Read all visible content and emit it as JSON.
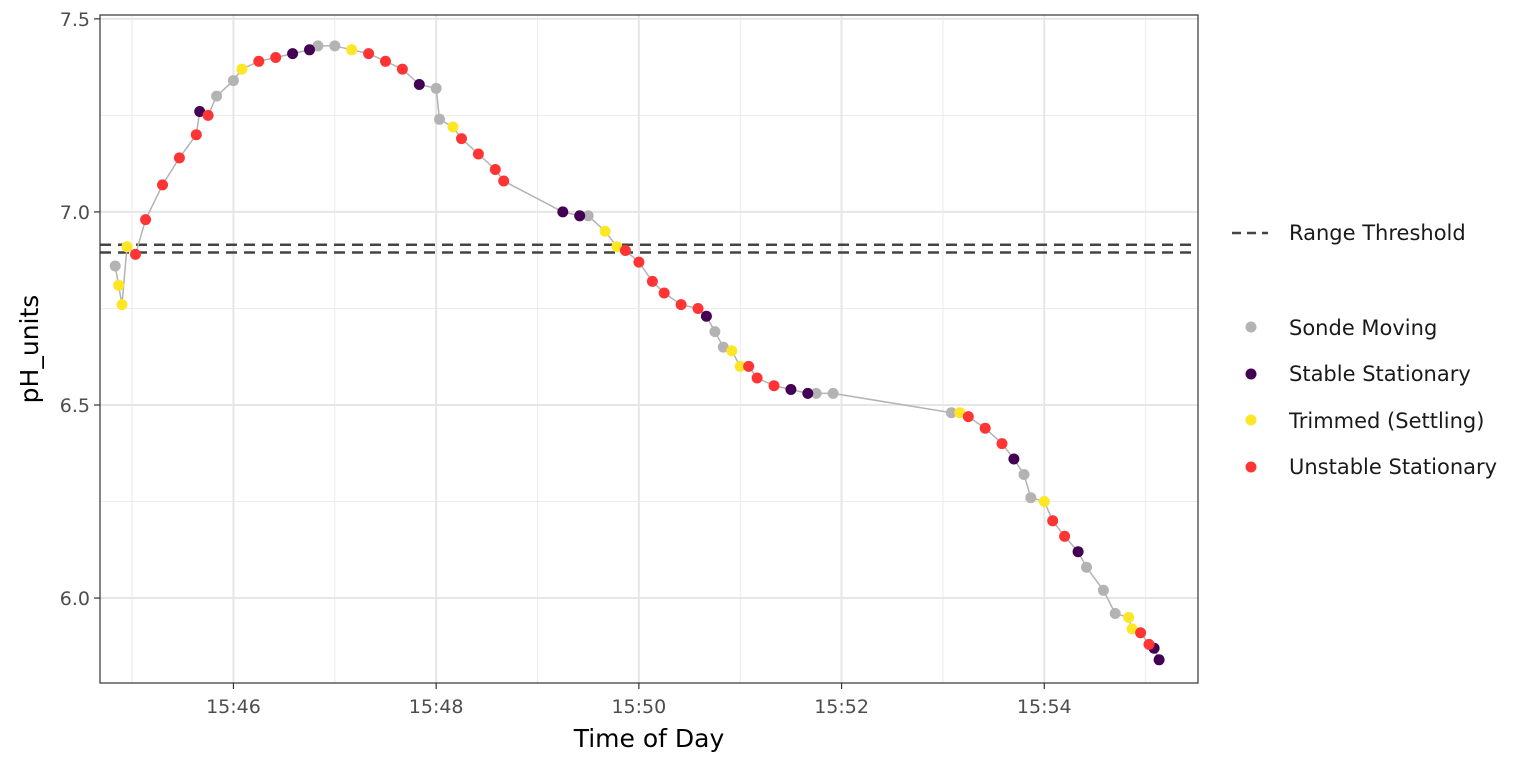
{
  "chart_data": {
    "type": "scatter",
    "title": "",
    "xlabel": "Time of Day",
    "ylabel": "pH_units",
    "xlim": [
      "15:44:41",
      "15:55:31"
    ],
    "ylim": [
      5.78,
      7.51
    ],
    "x_ticks": [
      "15:46",
      "15:48",
      "15:50",
      "15:52",
      "15:54"
    ],
    "y_ticks": [
      "6.0",
      "6.5",
      "7.0",
      "7.5"
    ],
    "grid": true,
    "legend_position": "right",
    "reference_lines": {
      "name": "Range Threshold",
      "style": "dashed",
      "color": "#444444",
      "values": [
        6.895,
        6.915
      ]
    },
    "series": [
      {
        "name": "Sonde Moving",
        "color": "#b3b3b3",
        "points": [
          [
            "15:44:50",
            6.86
          ],
          [
            "15:46:00",
            7.34
          ],
          [
            "15:45:50",
            7.3
          ],
          [
            "15:46:50",
            7.43
          ],
          [
            "15:47:00",
            7.43
          ],
          [
            "15:48:00",
            7.32
          ],
          [
            "15:48:02",
            7.24
          ],
          [
            "15:49:30",
            6.99
          ],
          [
            "15:50:45",
            6.69
          ],
          [
            "15:50:50",
            6.65
          ],
          [
            "15:51:45",
            6.53
          ],
          [
            "15:51:55",
            6.53
          ],
          [
            "15:53:05",
            6.48
          ],
          [
            "15:53:48",
            6.32
          ],
          [
            "15:53:52",
            6.26
          ],
          [
            "15:54:25",
            6.08
          ],
          [
            "15:54:35",
            6.02
          ],
          [
            "15:54:42",
            5.96
          ]
        ]
      },
      {
        "name": "Stable Stationary",
        "color": "#440154",
        "points": [
          [
            "15:45:40",
            7.26
          ],
          [
            "15:46:35",
            7.41
          ],
          [
            "15:46:45",
            7.42
          ],
          [
            "15:47:50",
            7.33
          ],
          [
            "15:49:15",
            7.0
          ],
          [
            "15:49:25",
            6.99
          ],
          [
            "15:50:40",
            6.73
          ],
          [
            "15:51:30",
            6.54
          ],
          [
            "15:51:40",
            6.53
          ],
          [
            "15:53:42",
            6.36
          ],
          [
            "15:54:20",
            6.12
          ],
          [
            "15:55:05",
            5.87
          ],
          [
            "15:55:08",
            5.84
          ]
        ]
      },
      {
        "name": "Trimmed (Settling)",
        "color": "#fde725",
        "points": [
          [
            "15:44:52",
            6.81
          ],
          [
            "15:44:54",
            6.76
          ],
          [
            "15:44:57",
            6.91
          ],
          [
            "15:46:05",
            7.37
          ],
          [
            "15:47:10",
            7.42
          ],
          [
            "15:48:10",
            7.22
          ],
          [
            "15:49:40",
            6.95
          ],
          [
            "15:49:47",
            6.91
          ],
          [
            "15:50:55",
            6.64
          ],
          [
            "15:51:00",
            6.6
          ],
          [
            "15:53:10",
            6.48
          ],
          [
            "15:54:00",
            6.25
          ],
          [
            "15:54:50",
            5.95
          ],
          [
            "15:54:52",
            5.92
          ]
        ]
      },
      {
        "name": "Unstable Stationary",
        "color": "#ff3434",
        "points": [
          [
            "15:45:02",
            6.89
          ],
          [
            "15:45:08",
            6.98
          ],
          [
            "15:45:18",
            7.07
          ],
          [
            "15:45:28",
            7.14
          ],
          [
            "15:45:38",
            7.2
          ],
          [
            "15:45:45",
            7.25
          ],
          [
            "15:46:15",
            7.39
          ],
          [
            "15:46:25",
            7.4
          ],
          [
            "15:47:20",
            7.41
          ],
          [
            "15:47:30",
            7.39
          ],
          [
            "15:47:40",
            7.37
          ],
          [
            "15:48:15",
            7.19
          ],
          [
            "15:48:25",
            7.15
          ],
          [
            "15:48:35",
            7.11
          ],
          [
            "15:48:40",
            7.08
          ],
          [
            "15:49:52",
            6.9
          ],
          [
            "15:50:00",
            6.87
          ],
          [
            "15:50:08",
            6.82
          ],
          [
            "15:50:15",
            6.79
          ],
          [
            "15:50:25",
            6.76
          ],
          [
            "15:50:35",
            6.75
          ],
          [
            "15:51:05",
            6.6
          ],
          [
            "15:51:10",
            6.57
          ],
          [
            "15:51:20",
            6.55
          ],
          [
            "15:53:15",
            6.47
          ],
          [
            "15:53:25",
            6.44
          ],
          [
            "15:53:35",
            6.4
          ],
          [
            "15:54:05",
            6.2
          ],
          [
            "15:54:12",
            6.16
          ],
          [
            "15:54:57",
            5.91
          ],
          [
            "15:55:02",
            5.88
          ]
        ]
      }
    ],
    "legend": {
      "line_label": "Range Threshold",
      "point_labels": [
        "Sonde Moving",
        "Stable Stationary",
        "Trimmed (Settling)",
        "Unstable Stationary"
      ]
    }
  }
}
